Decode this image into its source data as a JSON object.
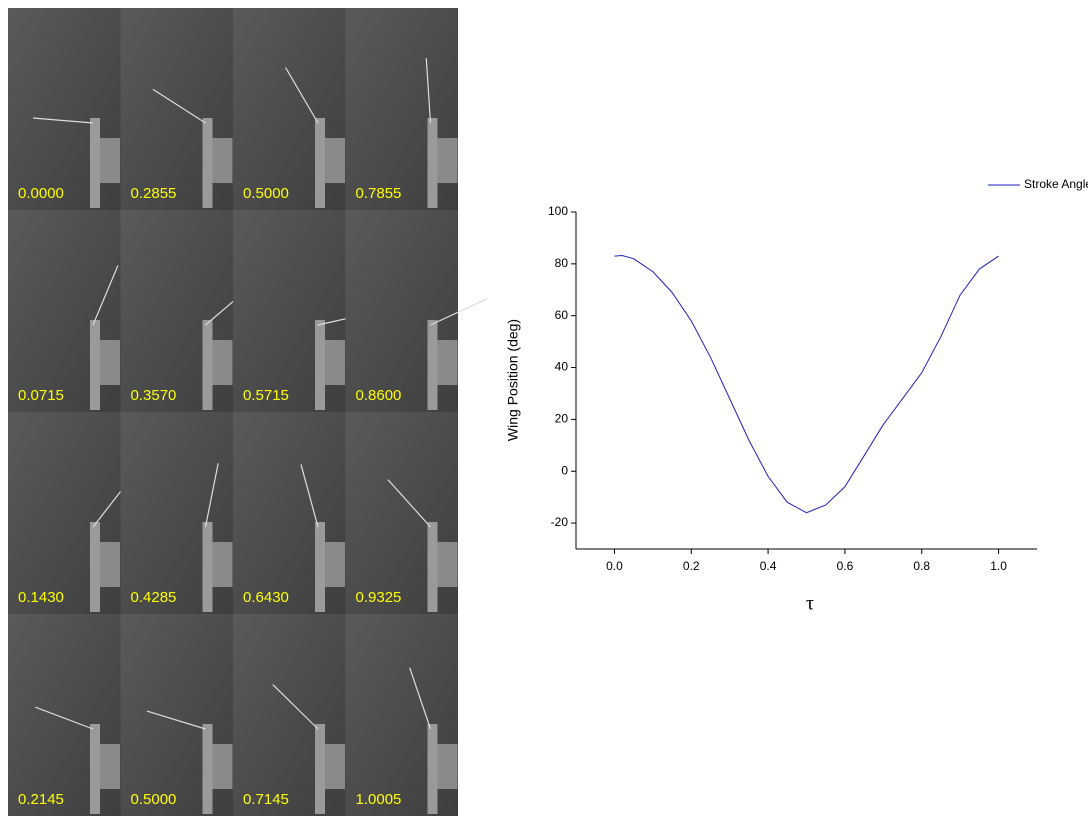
{
  "frames": {
    "rows": [
      [
        "0.0000",
        "0.2855",
        "0.5000",
        "0.7855"
      ],
      [
        "0.0715",
        "0.3570",
        "0.5715",
        "0.8600"
      ],
      [
        "0.1430",
        "0.4285",
        "0.6430",
        "0.9325"
      ],
      [
        "0.2145",
        "0.5000",
        "0.7145",
        "1.0005"
      ]
    ]
  },
  "chart_data": {
    "type": "line",
    "x_label": "τ",
    "y_label": "Wing Position (deg)",
    "x": [
      0,
      0.02,
      0.05,
      0.1,
      0.15,
      0.2,
      0.25,
      0.3,
      0.35,
      0.4,
      0.45,
      0.5,
      0.55,
      0.6,
      0.65,
      0.7,
      0.75,
      0.8,
      0.85,
      0.9,
      0.95,
      1.0
    ],
    "series": [
      {
        "name": "Stroke Angle",
        "color": "#2020c0",
        "values": [
          83,
          83.2,
          82,
          77,
          69,
          58,
          44,
          28,
          12,
          -2,
          -12,
          -16,
          -13,
          -6,
          6,
          18,
          28,
          38,
          52,
          68,
          78,
          83
        ]
      }
    ],
    "xlim": [
      -0.1,
      1.1
    ],
    "ylim": [
      -30,
      100
    ],
    "xticks": [
      {
        "value": 0,
        "label": "0.0"
      },
      {
        "value": 0.2,
        "label": "0.2"
      },
      {
        "value": 0.4,
        "label": "0.4"
      },
      {
        "value": 0.6,
        "label": "0.6"
      },
      {
        "value": 0.8,
        "label": "0.8"
      },
      {
        "value": 1,
        "label": "1.0"
      }
    ],
    "yticks": [
      -20,
      0,
      20,
      40,
      60,
      80,
      100
    ],
    "legend": "top-right",
    "grid": false
  }
}
